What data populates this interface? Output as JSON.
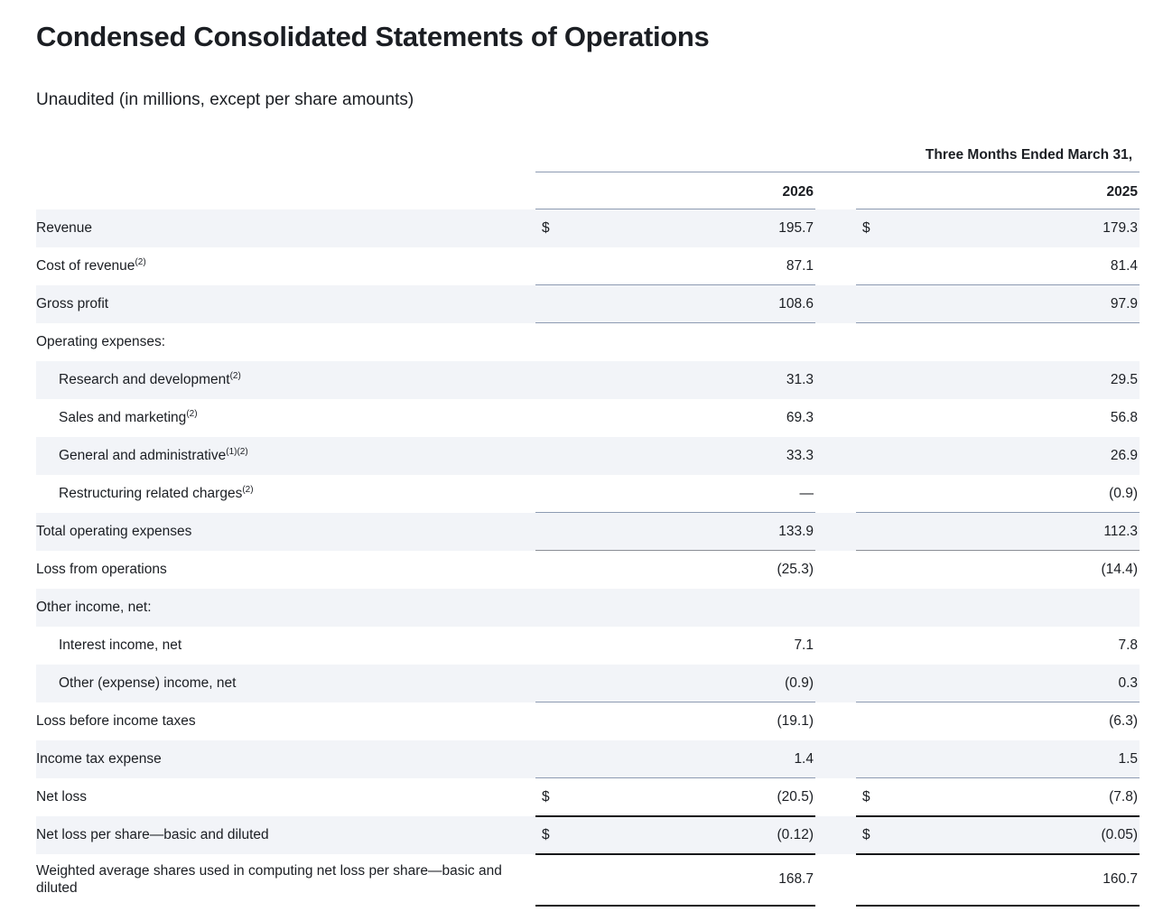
{
  "page": {
    "title": "Condensed Consolidated Statements of Operations",
    "subtitle": "Unaudited (in millions, except per share amounts)"
  },
  "theme": {
    "text": "#1b1e23",
    "stripe": "#f2f4f8",
    "rule_blue": "#8d9bb2",
    "rule_gray": "#8b8f96",
    "rule_black": "#17181a",
    "bg": "#ffffff"
  },
  "table": {
    "period_header": "Three Months Ended March 31,",
    "columns": [
      "2026",
      "2025"
    ],
    "rows": [
      {
        "label": "Revenue",
        "sup": "",
        "indent": false,
        "dollar": true,
        "values": [
          "195.7",
          "179.3"
        ],
        "rule": null,
        "tall": false
      },
      {
        "label": "Cost of revenue",
        "sup": "(2)",
        "indent": false,
        "dollar": false,
        "values": [
          "87.1",
          "81.4"
        ],
        "rule": "blue",
        "tall": false
      },
      {
        "label": "Gross profit",
        "sup": "",
        "indent": false,
        "dollar": false,
        "values": [
          "108.6",
          "97.9"
        ],
        "rule": "blue",
        "tall": false
      },
      {
        "label": "Operating expenses:",
        "sup": "",
        "indent": false,
        "dollar": false,
        "values": [
          "",
          ""
        ],
        "rule": null,
        "tall": false
      },
      {
        "label": "Research and development",
        "sup": "(2)",
        "indent": true,
        "dollar": false,
        "values": [
          "31.3",
          "29.5"
        ],
        "rule": null,
        "tall": false
      },
      {
        "label": "Sales and marketing",
        "sup": "(2)",
        "indent": true,
        "dollar": false,
        "values": [
          "69.3",
          "56.8"
        ],
        "rule": null,
        "tall": false
      },
      {
        "label": "General and administrative",
        "sup": "(1)(2)",
        "indent": true,
        "dollar": false,
        "values": [
          "33.3",
          "26.9"
        ],
        "rule": null,
        "tall": false
      },
      {
        "label": "Restructuring related charges",
        "sup": "(2)",
        "indent": true,
        "dollar": false,
        "values": [
          "—",
          "(0.9)"
        ],
        "rule": "blue",
        "tall": false
      },
      {
        "label": "Total operating expenses",
        "sup": "",
        "indent": false,
        "dollar": false,
        "values": [
          "133.9",
          "112.3"
        ],
        "rule": "gray",
        "tall": false
      },
      {
        "label": "Loss from operations",
        "sup": "",
        "indent": false,
        "dollar": false,
        "values": [
          "(25.3)",
          "(14.4)"
        ],
        "rule": null,
        "tall": false
      },
      {
        "label": "Other income, net:",
        "sup": "",
        "indent": false,
        "dollar": false,
        "values": [
          "",
          ""
        ],
        "rule": null,
        "tall": false
      },
      {
        "label": "Interest income, net",
        "sup": "",
        "indent": true,
        "dollar": false,
        "values": [
          "7.1",
          "7.8"
        ],
        "rule": null,
        "tall": false
      },
      {
        "label": "Other (expense) income, net",
        "sup": "",
        "indent": true,
        "dollar": false,
        "values": [
          "(0.9)",
          "0.3"
        ],
        "rule": "blue",
        "tall": false
      },
      {
        "label": "Loss before income taxes",
        "sup": "",
        "indent": false,
        "dollar": false,
        "values": [
          "(19.1)",
          "(6.3)"
        ],
        "rule": null,
        "tall": false
      },
      {
        "label": "Income tax expense",
        "sup": "",
        "indent": false,
        "dollar": false,
        "values": [
          "1.4",
          "1.5"
        ],
        "rule": "blue",
        "tall": false
      },
      {
        "label": "Net loss",
        "sup": "",
        "indent": false,
        "dollar": true,
        "values": [
          "(20.5)",
          "(7.8)"
        ],
        "rule": "black",
        "tall": false
      },
      {
        "label": "Net loss per share—basic and diluted",
        "sup": "",
        "indent": false,
        "dollar": true,
        "values": [
          "(0.12)",
          "(0.05)"
        ],
        "rule": "black",
        "tall": false
      },
      {
        "label": "Weighted average shares used in computing net loss per share—basic and diluted",
        "sup": "",
        "indent": false,
        "dollar": false,
        "values": [
          "168.7",
          "160.7"
        ],
        "rule": "black",
        "tall": true
      }
    ],
    "currency_symbol": "$"
  }
}
